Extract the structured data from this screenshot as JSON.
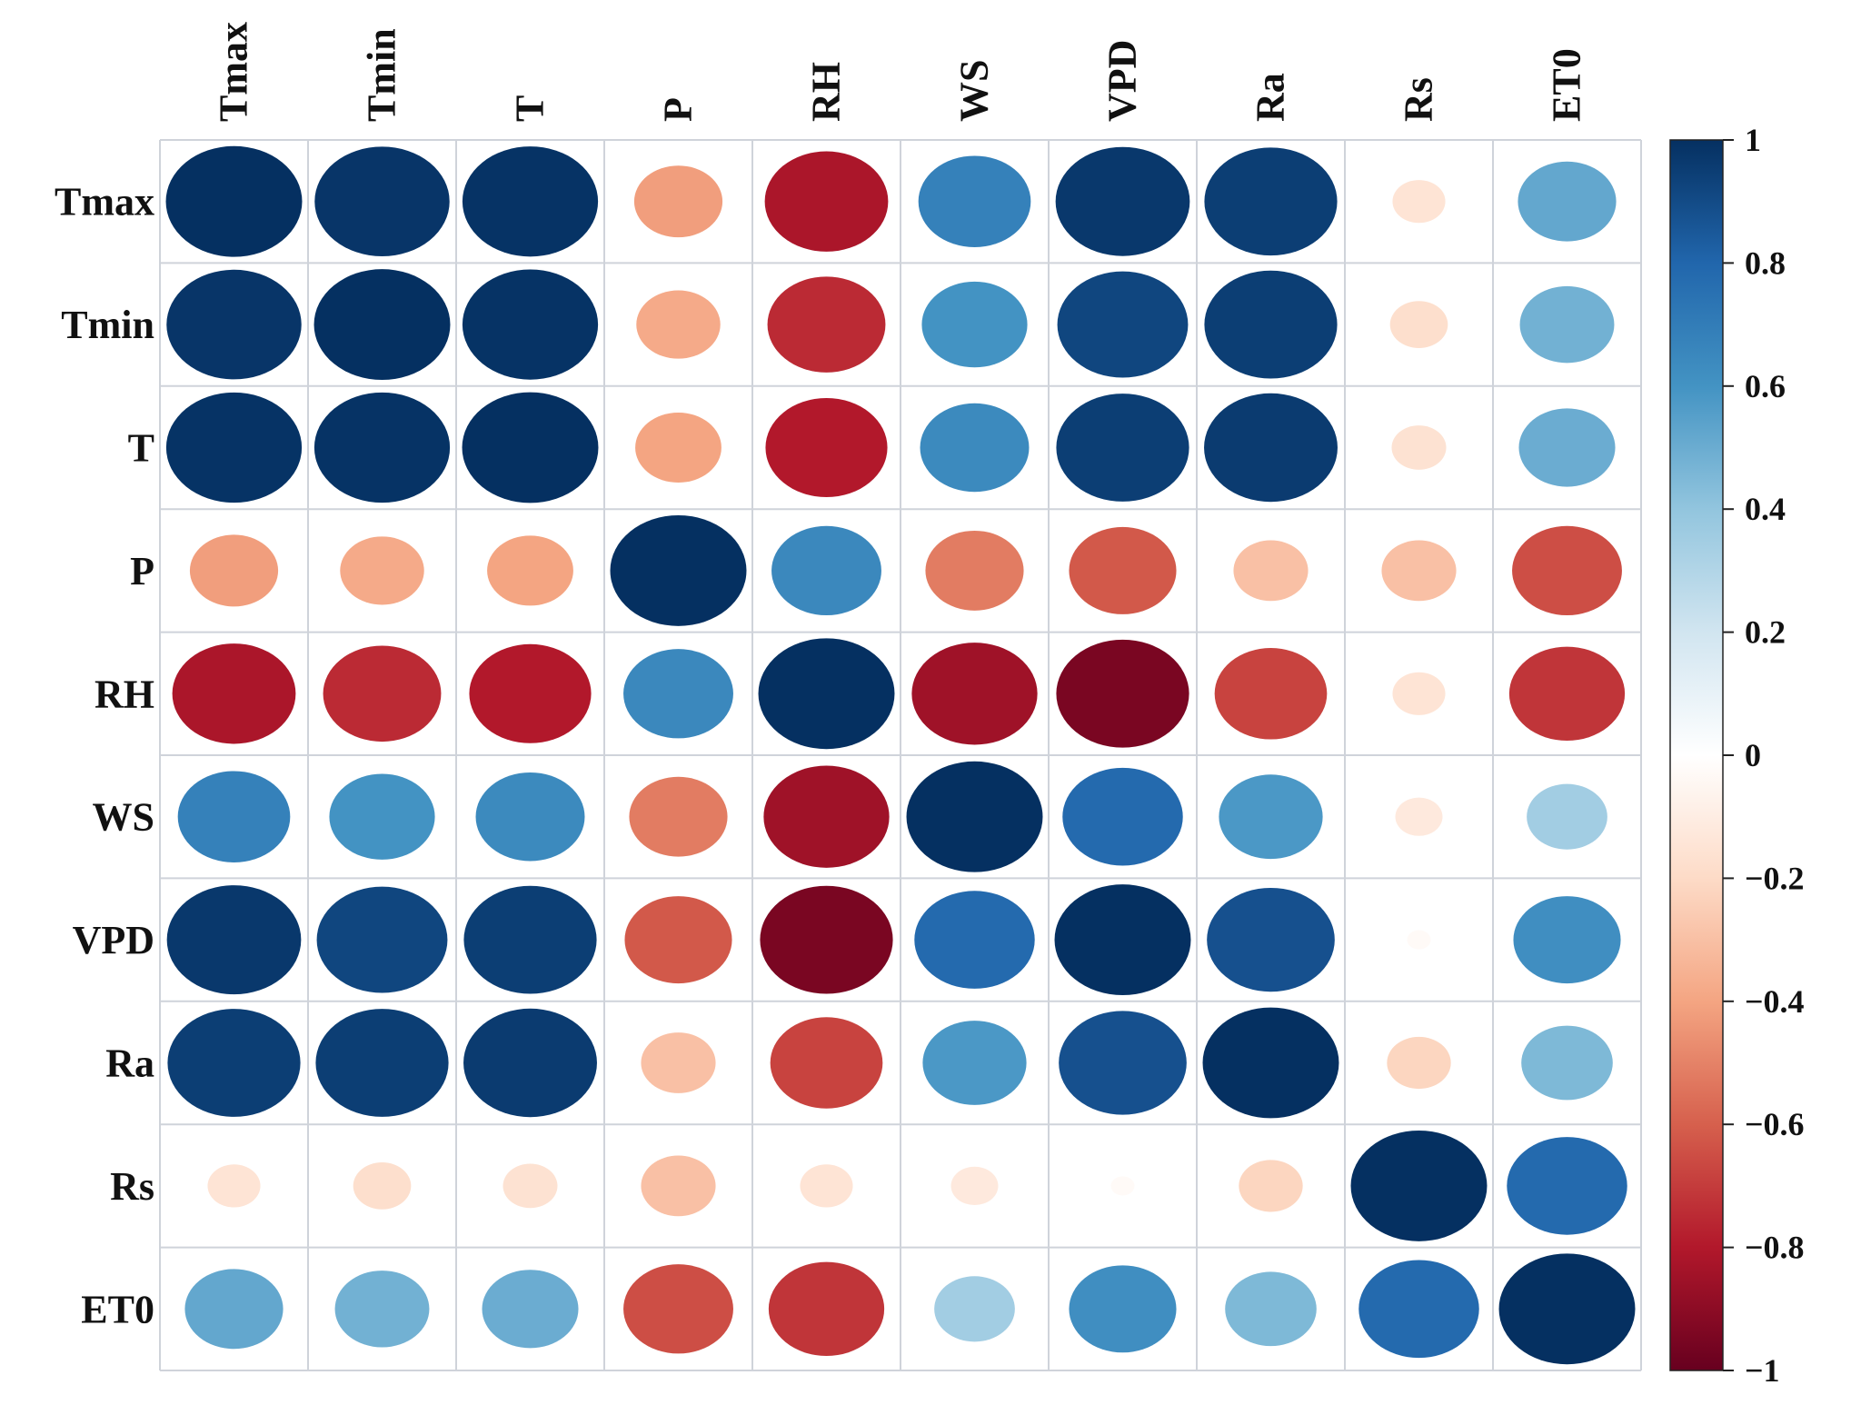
{
  "chart_data": {
    "type": "heatmap",
    "title": "",
    "xlabel": "",
    "ylabel": "",
    "variables": [
      "Tmax",
      "Tmin",
      "T",
      "P",
      "RH",
      "WS",
      "VPD",
      "Ra",
      "Rs",
      "ET0"
    ],
    "matrix": [
      [
        1.0,
        0.98,
        0.99,
        -0.42,
        -0.82,
        0.68,
        0.97,
        0.95,
        -0.15,
        0.52
      ],
      [
        0.98,
        1.0,
        0.99,
        -0.38,
        -0.75,
        0.6,
        0.92,
        0.95,
        -0.18,
        0.48
      ],
      [
        0.99,
        0.99,
        1.0,
        -0.4,
        -0.8,
        0.64,
        0.95,
        0.96,
        -0.16,
        0.5
      ],
      [
        -0.42,
        -0.38,
        -0.4,
        1.0,
        0.65,
        -0.52,
        -0.62,
        -0.3,
        -0.3,
        -0.65
      ],
      [
        -0.82,
        -0.75,
        -0.8,
        0.65,
        1.0,
        -0.85,
        -0.95,
        -0.68,
        -0.15,
        -0.72
      ],
      [
        0.68,
        0.6,
        0.64,
        -0.52,
        -0.85,
        1.0,
        0.78,
        0.58,
        -0.12,
        0.35
      ],
      [
        0.97,
        0.92,
        0.95,
        -0.62,
        -0.95,
        0.78,
        1.0,
        0.88,
        -0.03,
        0.62
      ],
      [
        0.95,
        0.95,
        0.96,
        -0.3,
        -0.68,
        0.58,
        0.88,
        1.0,
        -0.22,
        0.45
      ],
      [
        -0.15,
        -0.18,
        -0.16,
        -0.3,
        -0.15,
        -0.12,
        -0.03,
        -0.22,
        1.0,
        0.78
      ],
      [
        0.52,
        0.48,
        0.5,
        -0.65,
        -0.72,
        0.35,
        0.62,
        0.45,
        0.78,
        1.0
      ]
    ],
    "colorbar": {
      "range": [
        -1,
        1
      ],
      "ticks": [
        1,
        0.8,
        0.6,
        0.4,
        0.2,
        0,
        -0.2,
        -0.4,
        -0.6,
        -0.8,
        -1
      ],
      "tick_labels": [
        "1",
        "0.8",
        "0.6",
        "0.4",
        "0.2",
        "0",
        "−0.2",
        "−0.4",
        "−0.6",
        "−0.8",
        "−1"
      ],
      "colormap": "RdBu",
      "color_stops": [
        "#67001f",
        "#b2182b",
        "#d6604d",
        "#f4a582",
        "#fddbc7",
        "#ffffff",
        "#d1e5f0",
        "#92c5de",
        "#4393c3",
        "#2166ac",
        "#053061"
      ]
    },
    "grid": true,
    "marker": "ellipse"
  }
}
